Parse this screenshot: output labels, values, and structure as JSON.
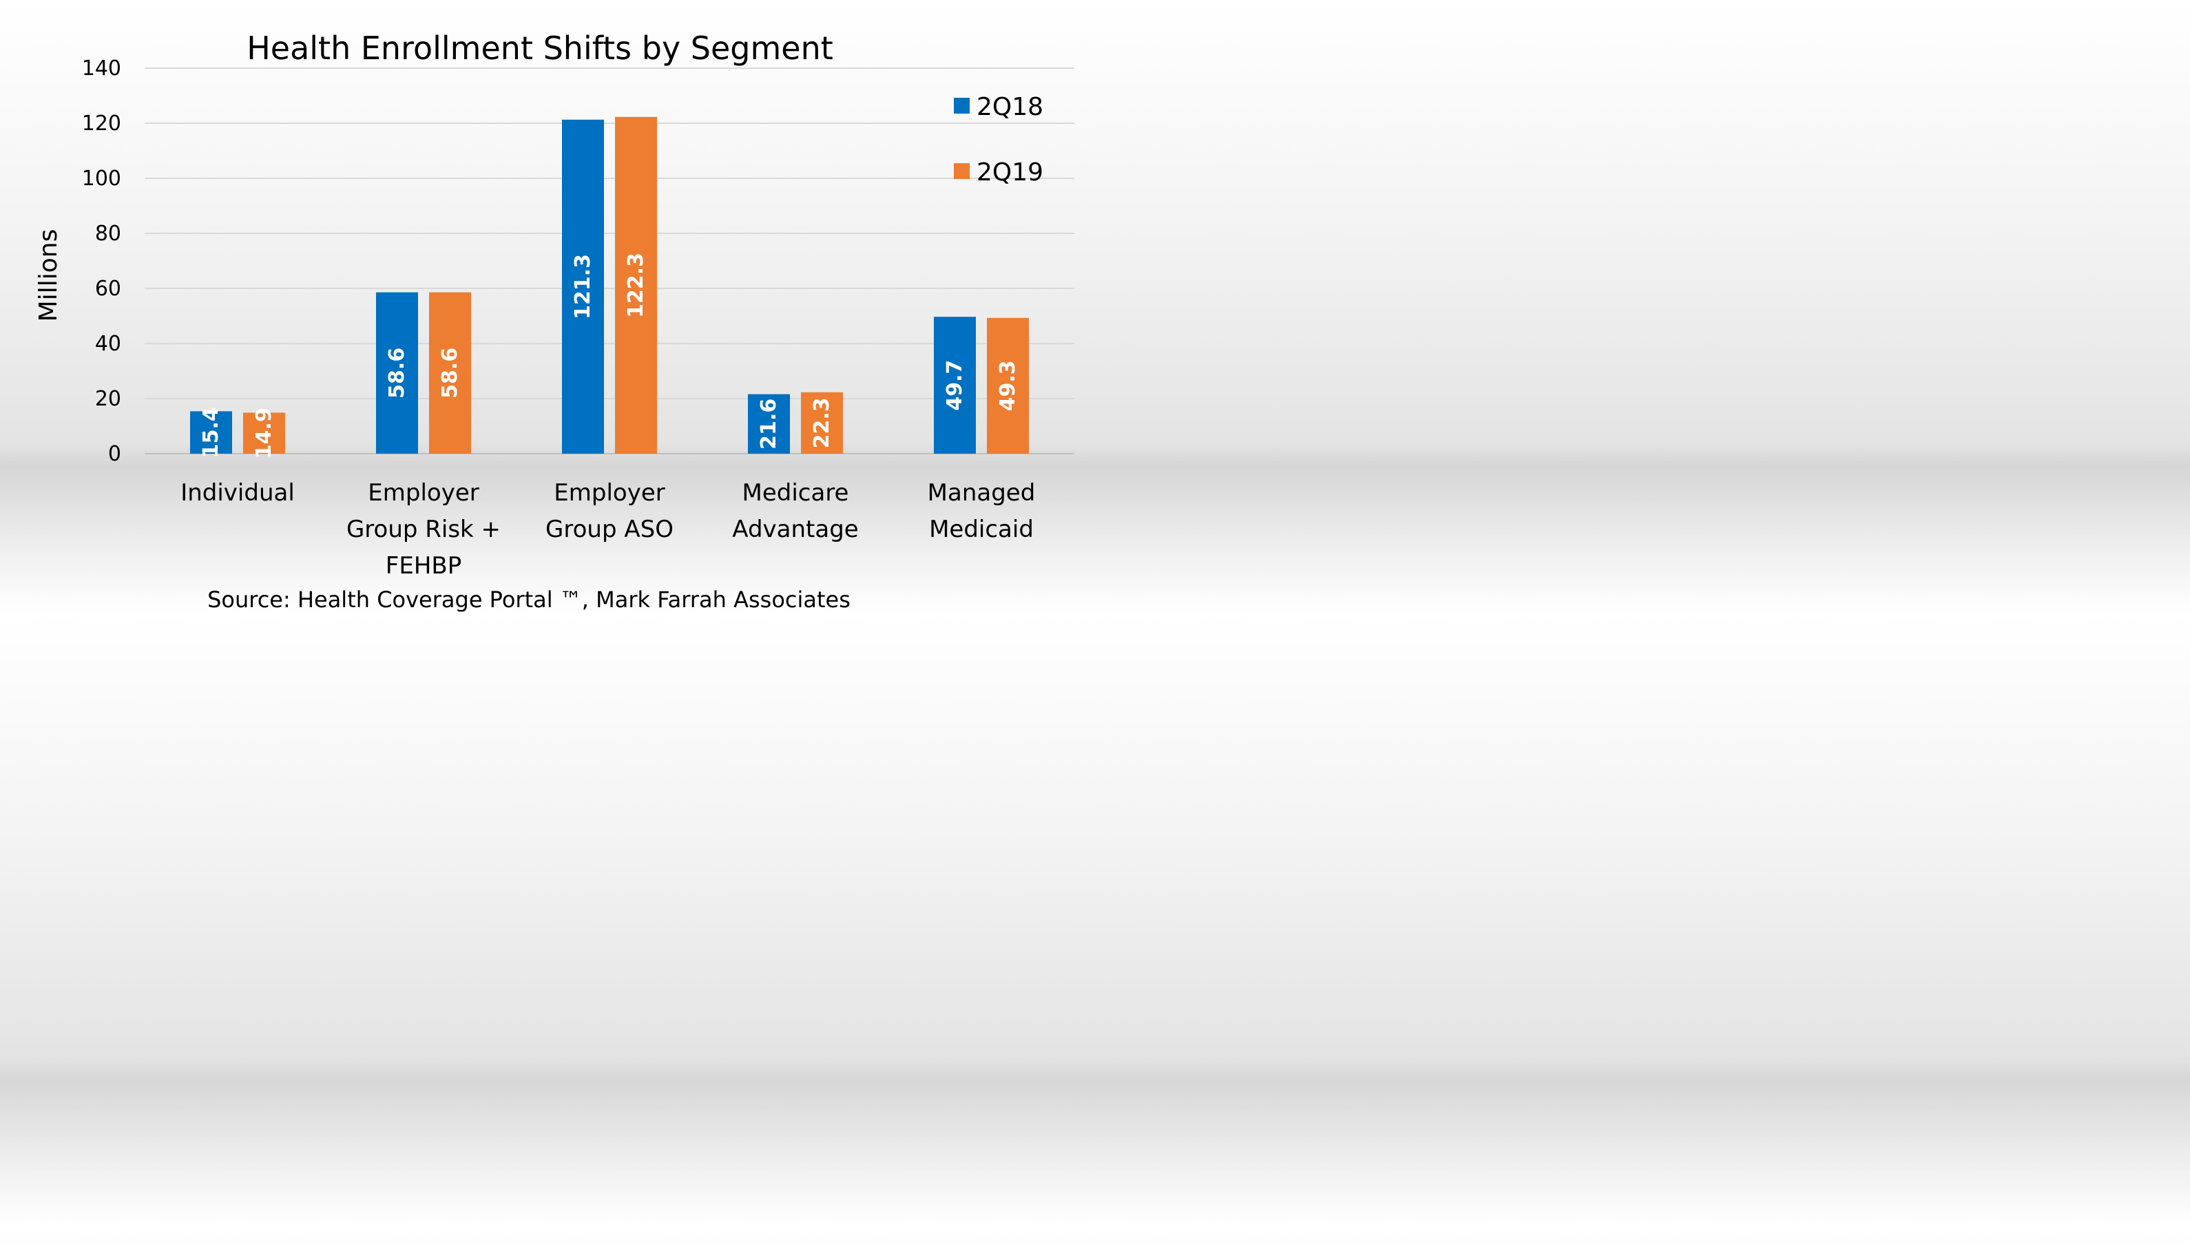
{
  "chart_data": {
    "type": "bar",
    "title": "Health Enrollment Shifts by Segment",
    "ylabel": "Millions",
    "xlabel": "",
    "ylim": [
      0,
      140
    ],
    "yticks": [
      "0",
      "20",
      "40",
      "60",
      "80",
      "100",
      "120",
      "140"
    ],
    "grid": true,
    "legend_position": "top-right",
    "categories": [
      [
        "Individual"
      ],
      [
        "Employer",
        "Group Risk +",
        "FEHBP"
      ],
      [
        "Employer",
        "Group ASO"
      ],
      [
        "Medicare",
        "Advantage"
      ],
      [
        "Managed",
        "Medicaid"
      ]
    ],
    "series": [
      {
        "name": "2Q18",
        "color": "#0070C0",
        "values": [
          15.4,
          58.6,
          121.3,
          21.6,
          49.7
        ],
        "labels": [
          "15.4",
          "58.6",
          "121.3",
          "21.6",
          "49.7"
        ]
      },
      {
        "name": "2Q19",
        "color": "#ED7D31",
        "values": [
          14.9,
          58.6,
          122.3,
          22.3,
          49.3
        ],
        "labels": [
          "14.9",
          "58.6",
          "122.3",
          "22.3",
          "49.3"
        ]
      }
    ],
    "source": "Source: Health Coverage Portal ™, Mark Farrah Associates"
  }
}
